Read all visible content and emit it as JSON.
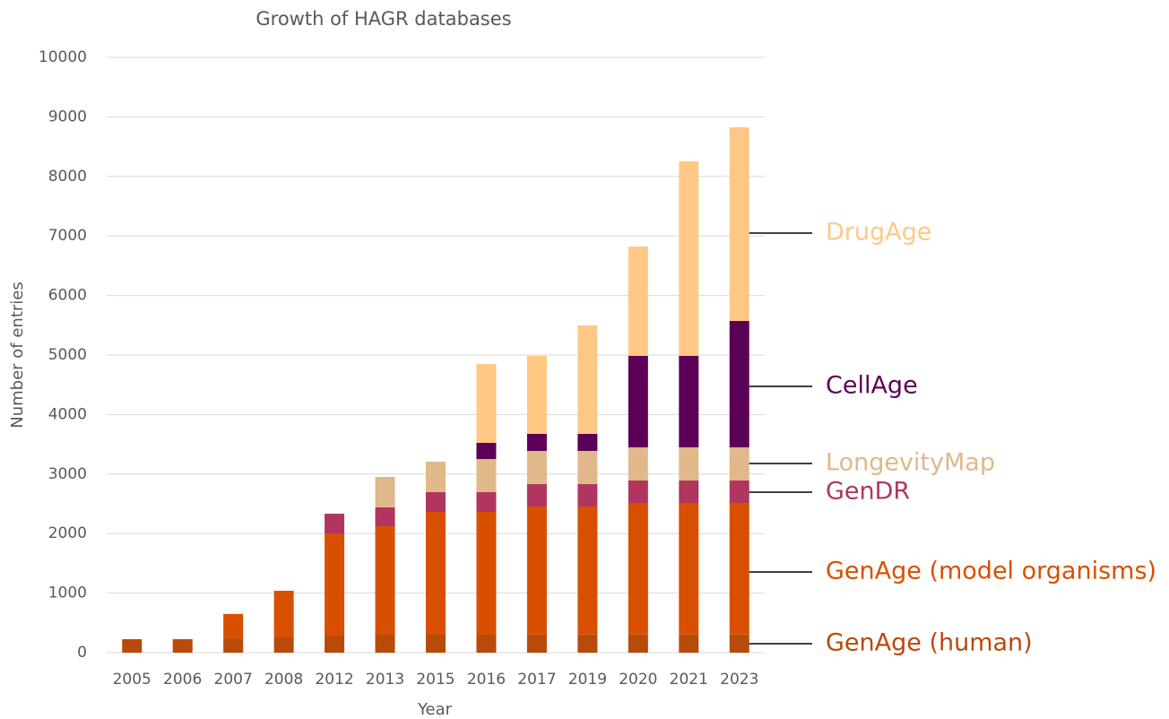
{
  "chart_data": {
    "type": "stacked_bar",
    "title": "Growth of HAGR databases",
    "x_label": "Year",
    "y_label": "Number of entries",
    "categories": [
      "2005",
      "2006",
      "2007",
      "2008",
      "2012",
      "2013",
      "2015",
      "2016",
      "2017",
      "2019",
      "2020",
      "2021",
      "2023"
    ],
    "series": [
      {
        "name": "GenAge (human)",
        "color": "#b84a0a",
        "values": [
          226,
          226,
          240,
          256,
          286,
          301,
          301,
          301,
          305,
          305,
          305,
          305,
          305
        ]
      },
      {
        "name": "GenAge (model organisms)",
        "color": "#d94f00",
        "values": [
          0,
          0,
          410,
          784,
          1717,
          1822,
          2063,
          2063,
          2150,
          2150,
          2210,
          2210,
          2210
        ]
      },
      {
        "name": "GenDR",
        "color": "#b0365f",
        "values": [
          0,
          0,
          0,
          0,
          331,
          317,
          332,
          332,
          376,
          376,
          377,
          377,
          377
        ]
      },
      {
        "name": "LongevityMap",
        "color": "#e0b88a",
        "values": [
          0,
          0,
          0,
          0,
          0,
          512,
          512,
          557,
          558,
          558,
          557,
          557,
          557
        ]
      },
      {
        "name": "CellAge",
        "color": "#5c0057",
        "values": [
          0,
          0,
          0,
          0,
          0,
          0,
          0,
          271,
          286,
          286,
          1536,
          1536,
          2123
        ]
      },
      {
        "name": "DrugAge",
        "color": "#ffc885",
        "values": [
          0,
          0,
          0,
          0,
          0,
          0,
          0,
          1325,
          1310,
          1822,
          1837,
          3268,
          3253
        ]
      }
    ],
    "ylim": [
      0,
      10000
    ],
    "yticks": [
      0,
      1000,
      2000,
      3000,
      4000,
      5000,
      6000,
      7000,
      8000,
      9000,
      10000
    ],
    "grid": true
  }
}
